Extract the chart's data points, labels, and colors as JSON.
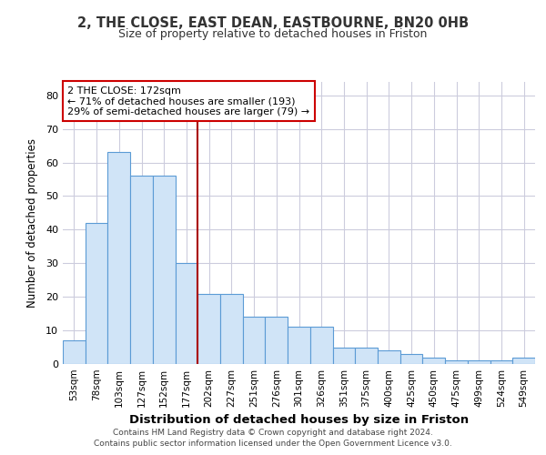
{
  "title1": "2, THE CLOSE, EAST DEAN, EASTBOURNE, BN20 0HB",
  "title2": "Size of property relative to detached houses in Friston",
  "xlabel": "Distribution of detached houses by size in Friston",
  "ylabel": "Number of detached properties",
  "categories": [
    "53sqm",
    "78sqm",
    "103sqm",
    "127sqm",
    "152sqm",
    "177sqm",
    "202sqm",
    "227sqm",
    "251sqm",
    "276sqm",
    "301sqm",
    "326sqm",
    "351sqm",
    "375sqm",
    "400sqm",
    "425sqm",
    "450sqm",
    "475sqm",
    "499sqm",
    "524sqm",
    "549sqm"
  ],
  "values": [
    7,
    42,
    63,
    56,
    56,
    30,
    21,
    21,
    14,
    14,
    11,
    11,
    5,
    5,
    4,
    3,
    2,
    1,
    1,
    1,
    2
  ],
  "bar_color": "#d0e4f7",
  "bar_edge_color": "#5b9bd5",
  "vline_x": 5.5,
  "vline_color": "#aa0000",
  "annotation_text": "2 THE CLOSE: 172sqm\n← 71% of detached houses are smaller (193)\n29% of semi-detached houses are larger (79) →",
  "annotation_box_color": "#ffffff",
  "annotation_box_edge": "#cc0000",
  "footer": "Contains HM Land Registry data © Crown copyright and database right 2024.\nContains public sector information licensed under the Open Government Licence v3.0.",
  "ylim": [
    0,
    84
  ],
  "yticks": [
    0,
    10,
    20,
    30,
    40,
    50,
    60,
    70,
    80
  ],
  "background_color": "#ffffff",
  "plot_bg_color": "#ffffff",
  "grid_color": "#ccccdd"
}
